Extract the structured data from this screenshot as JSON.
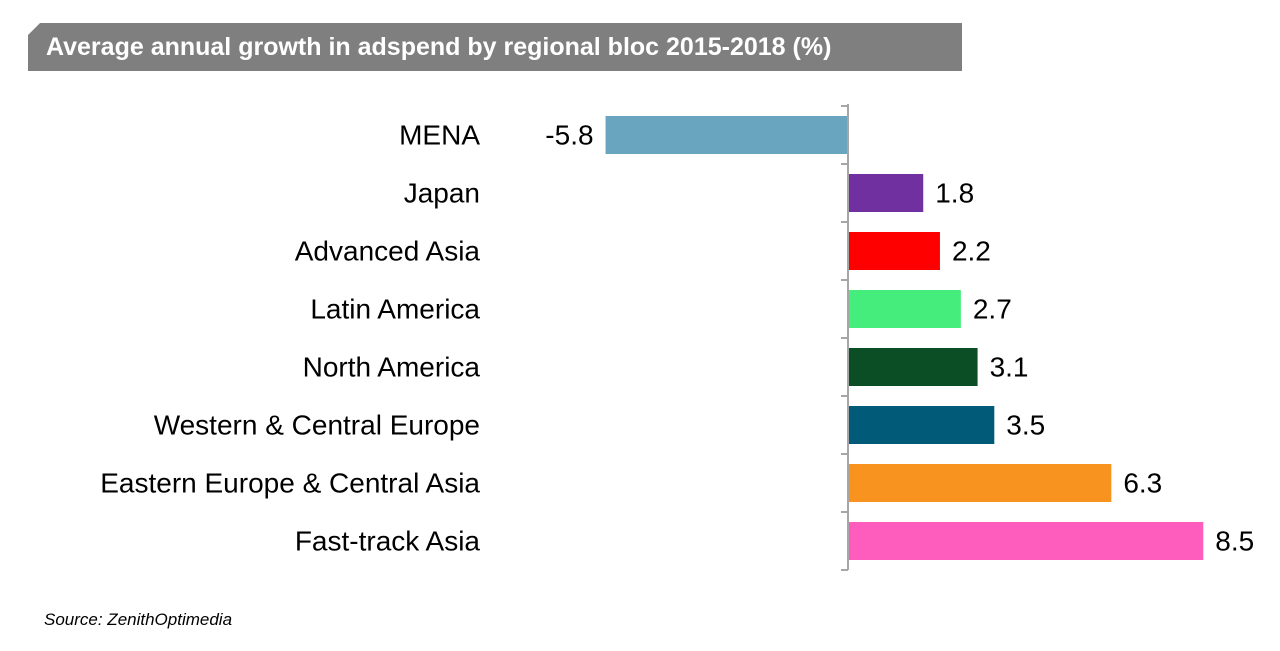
{
  "chart_data": {
    "type": "bar",
    "orientation": "horizontal",
    "title": "Average annual growth in adspend by regional bloc 2015-2018 (%)",
    "categories": [
      "MENA",
      "Japan",
      "Advanced Asia",
      "Latin America",
      "North America",
      "Western & Central Europe",
      "Eastern Europe & Central Asia",
      "Fast-track Asia"
    ],
    "values": [
      -5.8,
      1.8,
      2.2,
      2.7,
      3.1,
      3.5,
      6.3,
      8.5
    ],
    "value_labels": [
      "-5.8",
      "1.8",
      "2.2",
      "2.7",
      "3.1",
      "3.5",
      "6.3",
      "8.5"
    ],
    "colors": [
      "#6aa5bf",
      "#7030a0",
      "#ff0000",
      "#45ee7c",
      "#0b4d24",
      "#005a78",
      "#f7931e",
      "#ff5dbd"
    ],
    "xlim": [
      -5.8,
      8.5
    ],
    "grid": false,
    "legend": "none",
    "xlabel": "",
    "ylabel": ""
  },
  "source": "Source: ZenithOptimedia"
}
